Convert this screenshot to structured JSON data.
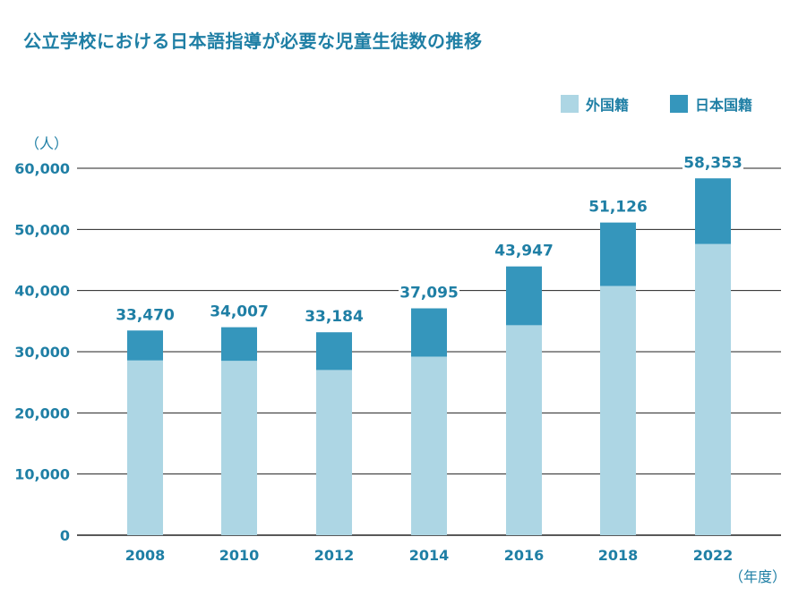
{
  "title": "公立学校における日本語指導が必要な児童生徒数の推移",
  "colors": {
    "foreign": "#add6e4",
    "japanese": "#3596bc",
    "text": "#1f7fa5",
    "grid": "#222222"
  },
  "chart_data": {
    "type": "bar",
    "stacked": true,
    "title": "公立学校における日本語指導が必要な児童生徒数の推移",
    "xlabel": "（年度）",
    "ylabel": "（人）",
    "categories": [
      "2008",
      "2010",
      "2012",
      "2014",
      "2016",
      "2018",
      "2022"
    ],
    "series": [
      {
        "name": "外国籍",
        "values": [
          28575,
          28511,
          27013,
          29198,
          34335,
          40755,
          47619
        ]
      },
      {
        "name": "日本国籍",
        "values": [
          4895,
          5496,
          6171,
          7897,
          9612,
          10371,
          10734
        ]
      }
    ],
    "totals": [
      33470,
      34007,
      33184,
      37095,
      43947,
      51126,
      58353
    ],
    "total_labels": [
      "33,470",
      "34,007",
      "33,184",
      "37,095",
      "43,947",
      "51,126",
      "58,353"
    ],
    "yticks": [
      0,
      10000,
      20000,
      30000,
      40000,
      50000,
      60000
    ],
    "ytick_labels": [
      "0",
      "10,000",
      "20,000",
      "30,000",
      "40,000",
      "50,000",
      "60,000"
    ],
    "ylim": [
      0,
      60000
    ],
    "grid": true,
    "legend_position": "top-right"
  }
}
